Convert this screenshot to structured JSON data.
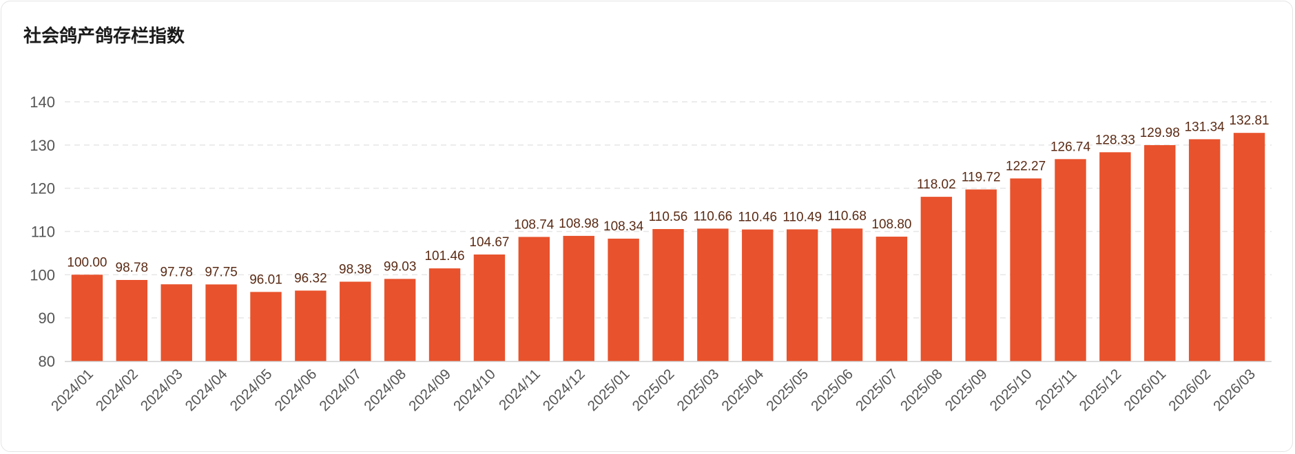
{
  "chart_data": {
    "type": "bar",
    "title": "社会鸽产鸽存栏指数",
    "xlabel": "",
    "ylabel": "",
    "ylim": [
      80,
      140
    ],
    "yticks": [
      80,
      90,
      100,
      110,
      120,
      130,
      140
    ],
    "grid": true,
    "bar_color": "#e8522c",
    "categories": [
      "2024/01",
      "2024/02",
      "2024/03",
      "2024/04",
      "2024/05",
      "2024/06",
      "2024/07",
      "2024/08",
      "2024/09",
      "2024/10",
      "2024/11",
      "2024/12",
      "2025/01",
      "2025/02",
      "2025/03",
      "2025/04",
      "2025/05",
      "2025/06",
      "2025/07",
      "2025/08",
      "2025/09",
      "2025/10",
      "2025/11",
      "2025/12",
      "2026/01",
      "2026/02",
      "2026/03"
    ],
    "values": [
      100.0,
      98.78,
      97.78,
      97.75,
      96.01,
      96.32,
      98.38,
      99.03,
      101.46,
      104.67,
      108.74,
      108.98,
      108.34,
      110.56,
      110.66,
      110.46,
      110.49,
      110.68,
      108.8,
      118.02,
      119.72,
      122.27,
      126.74,
      128.33,
      129.98,
      131.34,
      132.81
    ],
    "value_labels": [
      "100.00",
      "98.78",
      "97.78",
      "97.75",
      "96.01",
      "96.32",
      "98.38",
      "99.03",
      "101.46",
      "104.67",
      "108.74",
      "108.98",
      "108.34",
      "110.56",
      "110.66",
      "110.46",
      "110.49",
      "110.68",
      "108.80",
      "118.02",
      "119.72",
      "122.27",
      "126.74",
      "128.33",
      "129.98",
      "131.34",
      "132.81"
    ]
  }
}
